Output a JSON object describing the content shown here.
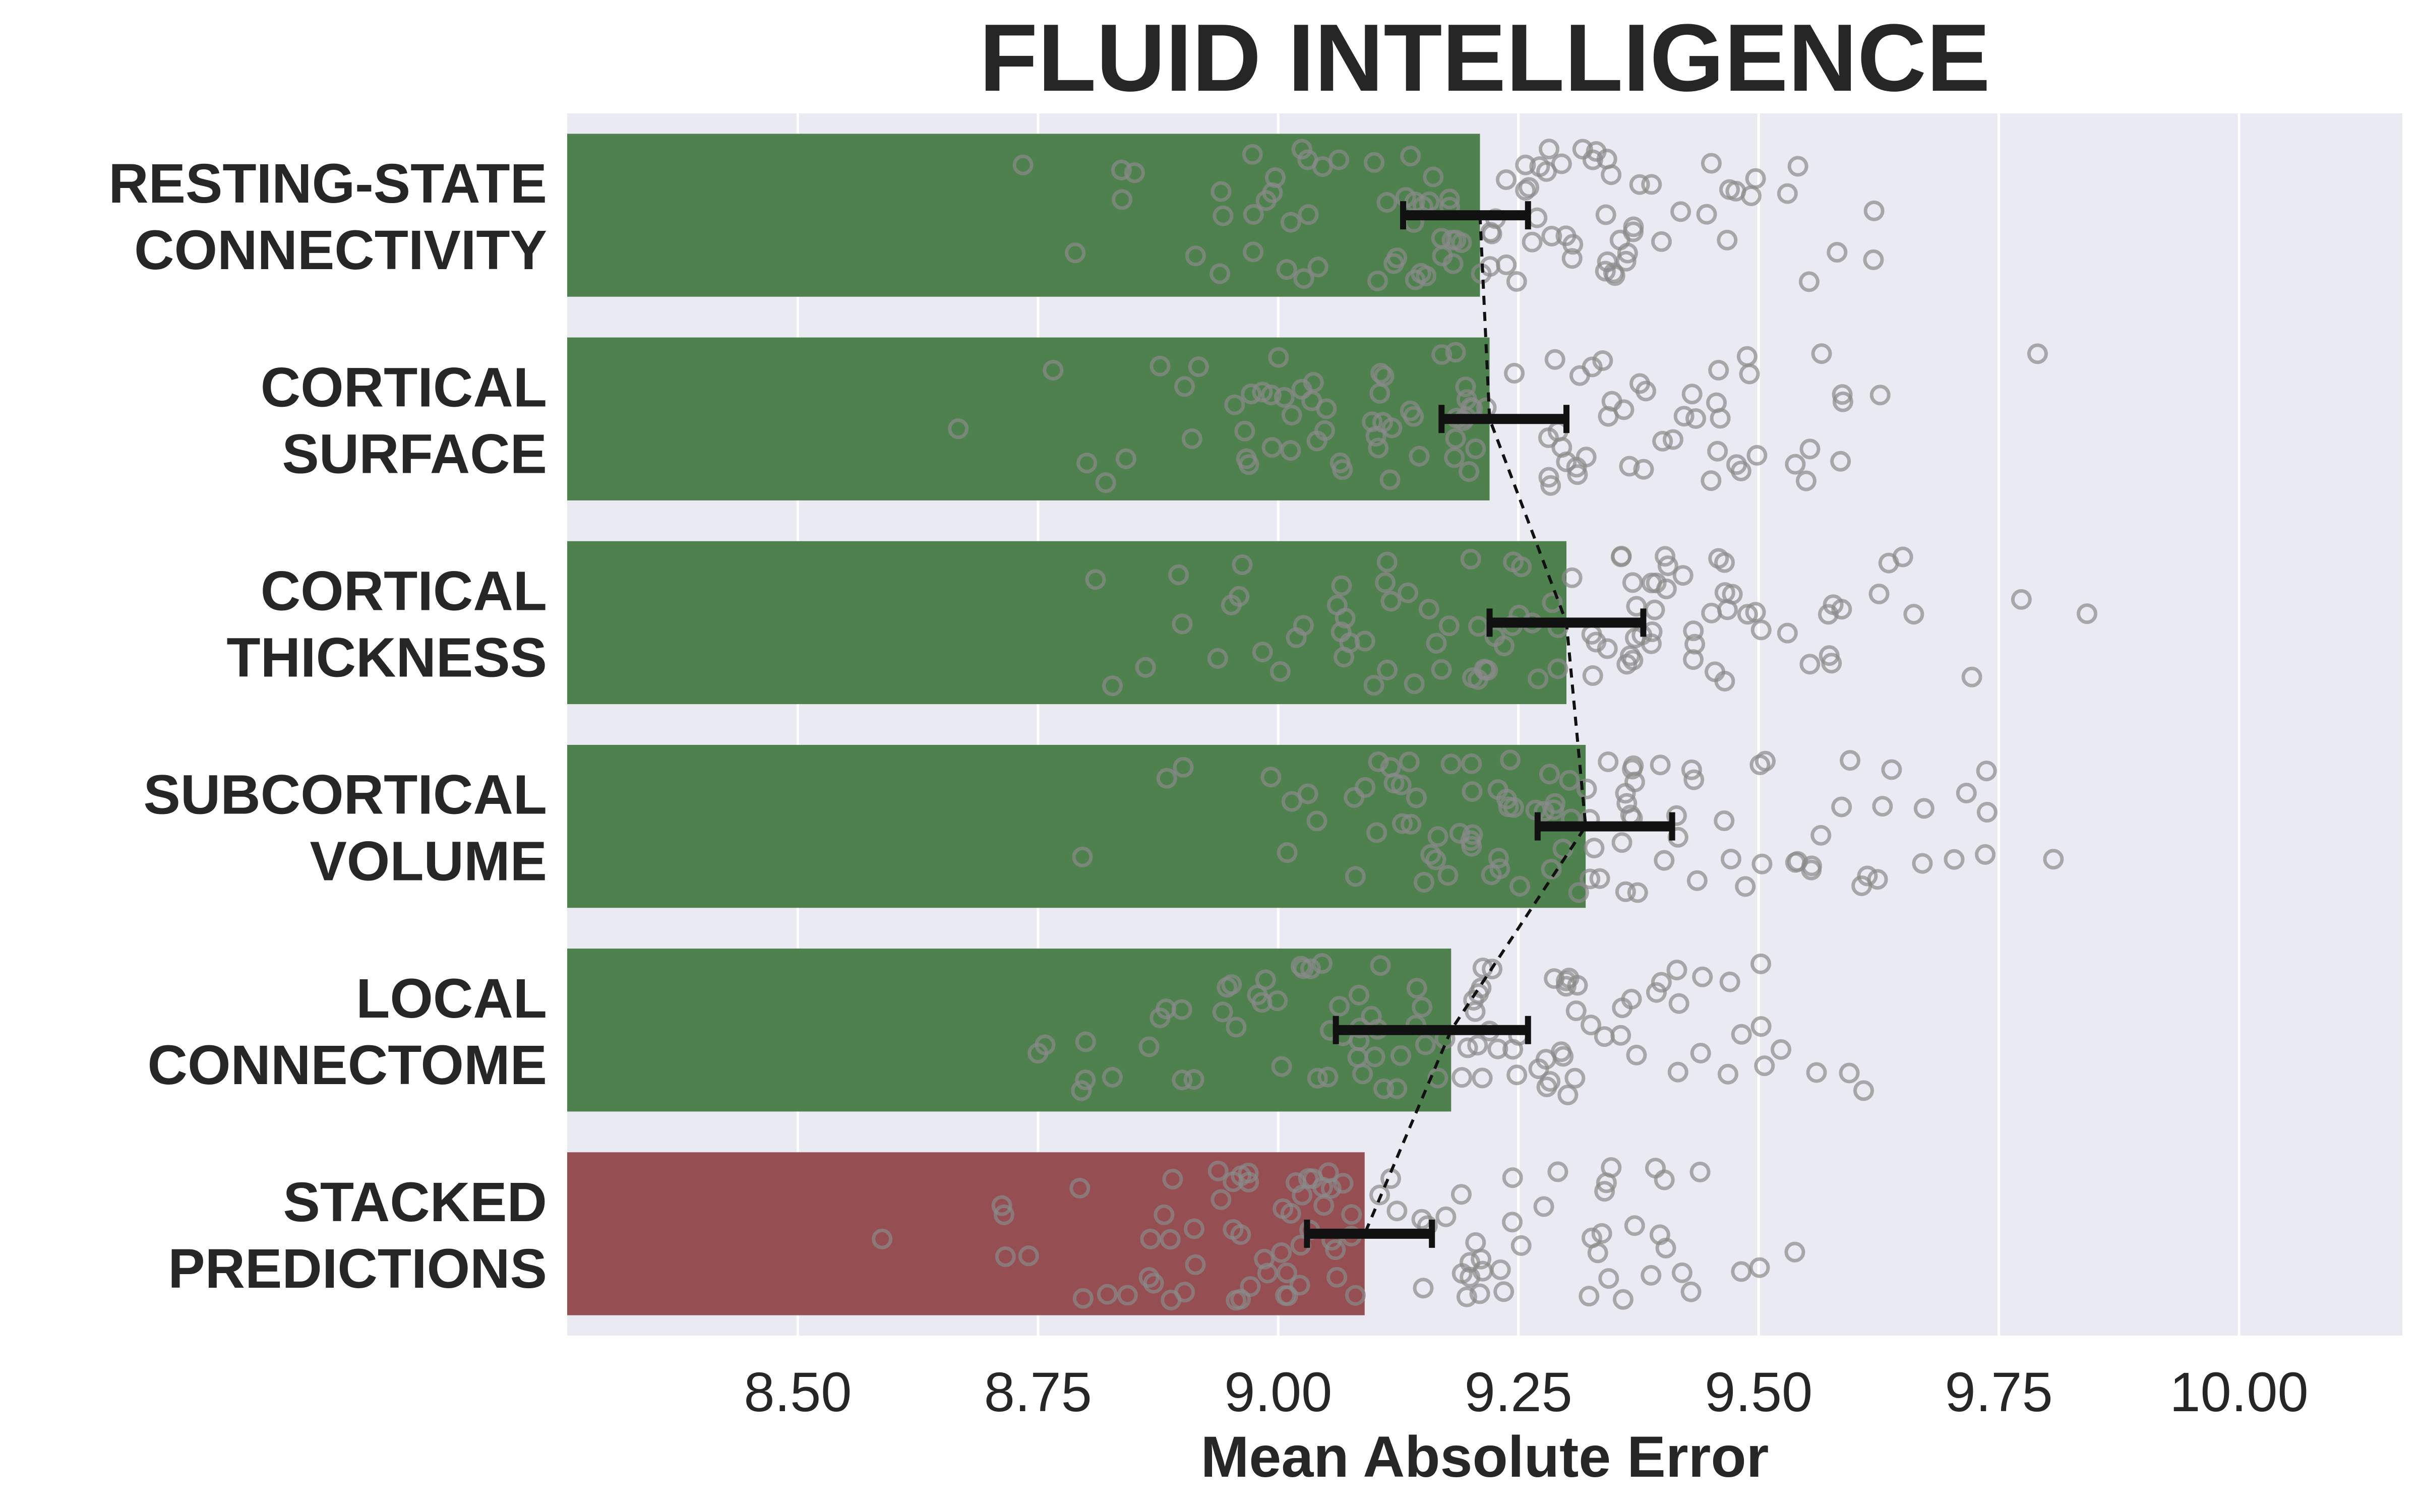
{
  "chart_data": {
    "type": "bar",
    "orientation": "horizontal",
    "title": "FLUID INTELLIGENCE",
    "xlabel": "Mean Absolute Error",
    "ylabel": "",
    "xlim": [
      8.26,
      10.17
    ],
    "xticks": [
      8.5,
      8.75,
      9.0,
      9.25,
      9.5,
      9.75,
      10.0
    ],
    "xtick_labels": [
      "8.50",
      "8.75",
      "9.00",
      "9.25",
      "9.50",
      "9.75",
      "10.00"
    ],
    "grid": true,
    "categories": [
      [
        "RESTING-STATE",
        "CONNECTIVITY"
      ],
      [
        "CORTICAL",
        "SURFACE"
      ],
      [
        "CORTICAL",
        "THICKNESS"
      ],
      [
        "SUBCORTICAL",
        "VOLUME"
      ],
      [
        "LOCAL",
        "CONNECTOME"
      ],
      [
        "STACKED",
        "PREDICTIONS"
      ]
    ],
    "values": [
      9.21,
      9.22,
      9.3,
      9.32,
      9.18,
      9.09
    ],
    "ci_low": [
      9.13,
      9.17,
      9.22,
      9.27,
      9.06,
      9.03
    ],
    "ci_high": [
      9.26,
      9.3,
      9.38,
      9.41,
      9.26,
      9.16
    ],
    "bar_colors": [
      "#4f814f",
      "#4f814f",
      "#4f814f",
      "#4f814f",
      "#4f814f",
      "#954f52"
    ],
    "colors": {
      "background": "#eaeaf2",
      "grid": "#ffffff",
      "point_stroke": "#8a8a8a",
      "errorbar": "#111111",
      "connector": "#111111"
    }
  }
}
